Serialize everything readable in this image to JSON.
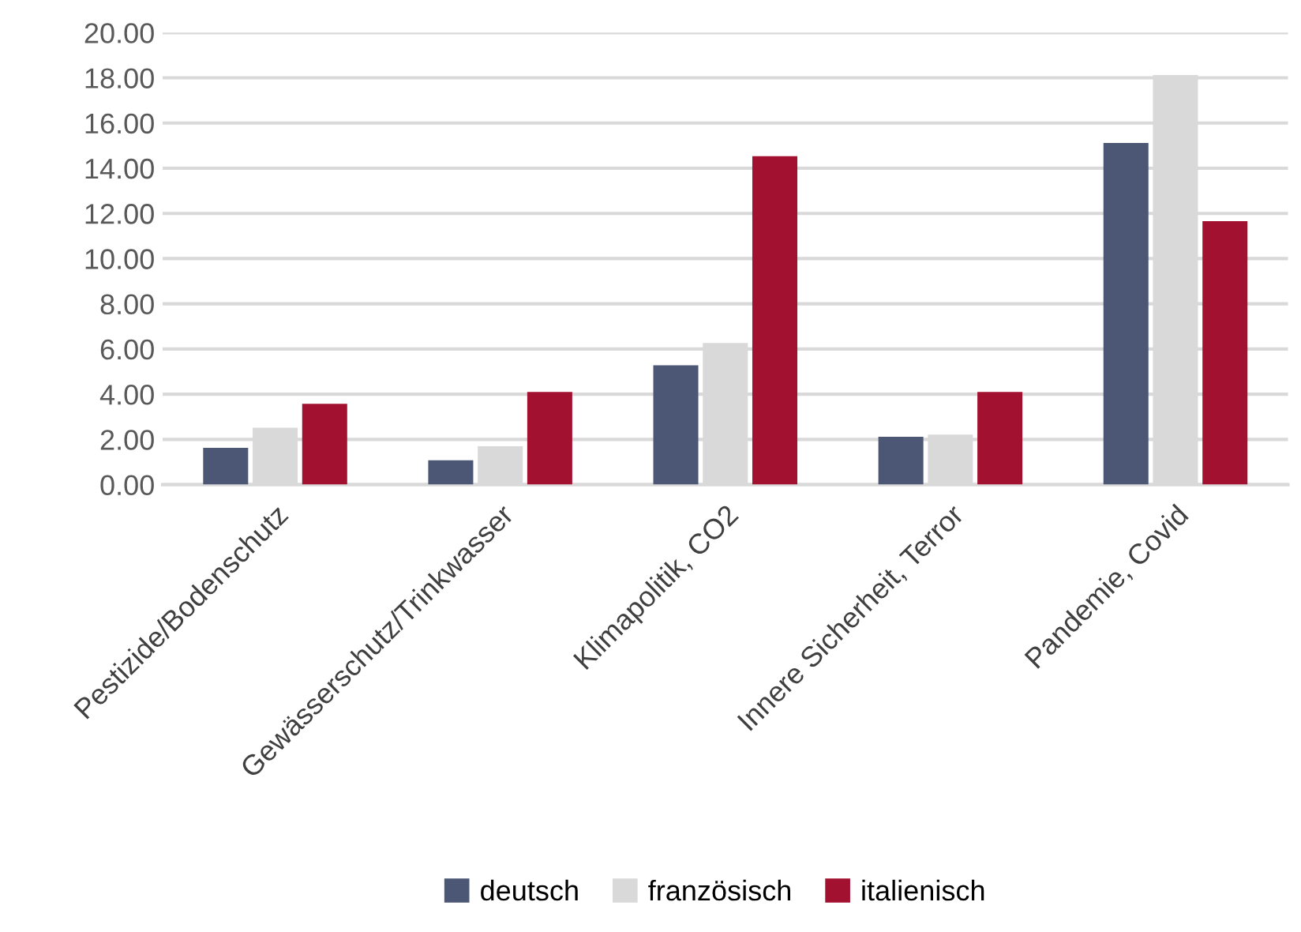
{
  "chart_data": {
    "type": "bar",
    "categories": [
      "Pestizide/Bodenschutz",
      "Gewässerschutz/Trinkwasser",
      "Klimapolitik, CO2",
      "Innere Sicherheit, Terror",
      "Pandemie, Covid"
    ],
    "series": [
      {
        "name": "deutsch",
        "color": "#4b5775",
        "values": [
          1.63,
          1.08,
          5.28,
          2.12,
          15.12
        ]
      },
      {
        "name": "französisch",
        "color": "#d9d9d9",
        "values": [
          2.52,
          1.7,
          6.27,
          2.21,
          18.12
        ]
      },
      {
        "name": "italienisch",
        "color": "#a31130",
        "values": [
          3.58,
          4.1,
          14.53,
          4.1,
          11.66
        ]
      }
    ],
    "ylim": [
      0,
      20
    ],
    "yticks": [
      {
        "value": 0,
        "label": "0.00"
      },
      {
        "value": 2,
        "label": "2.00"
      },
      {
        "value": 4,
        "label": "4.00"
      },
      {
        "value": 6,
        "label": "6.00"
      },
      {
        "value": 8,
        "label": "8.00"
      },
      {
        "value": 10,
        "label": "10.00"
      },
      {
        "value": 12,
        "label": "12.00"
      },
      {
        "value": 14,
        "label": "14.00"
      },
      {
        "value": 16,
        "label": "16.00"
      },
      {
        "value": 18,
        "label": "18.00"
      },
      {
        "value": 20,
        "label": "20.00"
      }
    ],
    "grid": "y",
    "legend": "bottom"
  }
}
